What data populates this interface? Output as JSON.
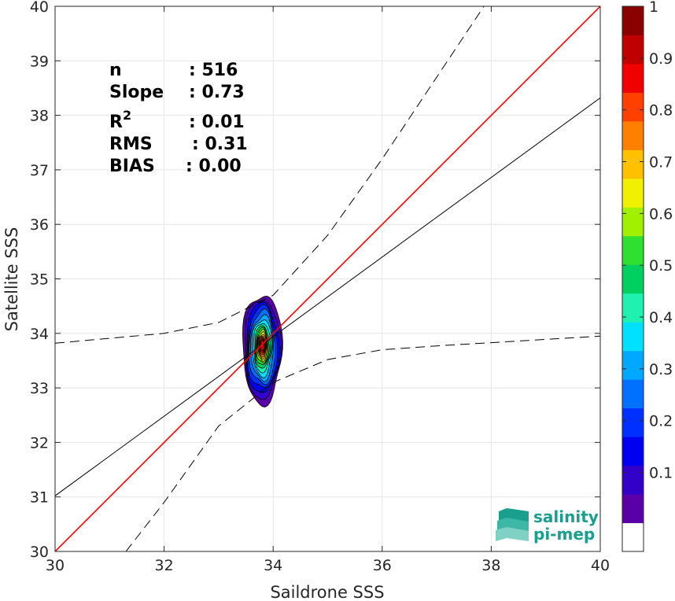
{
  "chart_data": {
    "type": "contour-scatter",
    "xlabel": "Saildrone SSS",
    "ylabel": "Satellite SSS",
    "xlim": [
      30,
      40
    ],
    "ylim": [
      30,
      40
    ],
    "xticks": [
      "30",
      "32",
      "34",
      "36",
      "38",
      "40"
    ],
    "yticks": [
      "30",
      "31",
      "32",
      "33",
      "34",
      "35",
      "36",
      "37",
      "38",
      "39",
      "40"
    ],
    "grid": true,
    "stats": [
      {
        "label": "n",
        "value": ": 516"
      },
      {
        "label": "Slope",
        "value": ": 0.73"
      },
      {
        "label": "R",
        "sup": "2",
        "value": ": 0.01"
      },
      {
        "label": "RMS",
        "value": ": 0.31"
      },
      {
        "label": "BIAS",
        "value": ": 0.00"
      }
    ],
    "identity_line": {
      "x": [
        30,
        40
      ],
      "y": [
        30,
        40
      ],
      "color": "#ff0000"
    },
    "fit_line": {
      "x": [
        30,
        40
      ],
      "y": [
        31.02,
        38.32
      ],
      "color": "#000000"
    },
    "upper_envelope": {
      "x": [
        30,
        32,
        33,
        34,
        35,
        36,
        37,
        38,
        40
      ],
      "y": [
        33.82,
        34.0,
        34.2,
        34.7,
        35.8,
        37.2,
        38.7,
        40.2,
        40.2
      ]
    },
    "lower_envelope": {
      "x": [
        31.3,
        32,
        33,
        34,
        35,
        36,
        37,
        38,
        40
      ],
      "y": [
        30.0,
        30.9,
        32.3,
        33.1,
        33.52,
        33.7,
        33.77,
        33.83,
        33.95
      ]
    },
    "density_contours": {
      "center": [
        33.8,
        33.78
      ],
      "levels": [
        {
          "level": 0.05,
          "rx": 0.36,
          "ry": 1.0,
          "color": "#5a00a8"
        },
        {
          "level": 0.1,
          "rx": 0.33,
          "ry": 0.91,
          "color": "#3200c8"
        },
        {
          "level": 0.15,
          "rx": 0.3,
          "ry": 0.83,
          "color": "#0000f0"
        },
        {
          "level": 0.2,
          "rx": 0.27,
          "ry": 0.75,
          "color": "#0030ff"
        },
        {
          "level": 0.25,
          "rx": 0.24,
          "ry": 0.67,
          "color": "#0070ff"
        },
        {
          "level": 0.3,
          "rx": 0.21,
          "ry": 0.59,
          "color": "#00a8ff"
        },
        {
          "level": 0.35,
          "rx": 0.185,
          "ry": 0.52,
          "color": "#00e0ff"
        },
        {
          "level": 0.4,
          "rx": 0.16,
          "ry": 0.45,
          "color": "#20f0b0"
        },
        {
          "level": 0.45,
          "rx": 0.14,
          "ry": 0.39,
          "color": "#00d060"
        },
        {
          "level": 0.5,
          "rx": 0.12,
          "ry": 0.34,
          "color": "#30e030"
        },
        {
          "level": 0.55,
          "rx": 0.105,
          "ry": 0.3,
          "color": "#a0f000"
        },
        {
          "level": 0.6,
          "rx": 0.09,
          "ry": 0.26,
          "color": "#f0f000"
        },
        {
          "level": 0.65,
          "rx": 0.078,
          "ry": 0.22,
          "color": "#ffc000"
        },
        {
          "level": 0.7,
          "rx": 0.066,
          "ry": 0.19,
          "color": "#ff8000"
        },
        {
          "level": 0.75,
          "rx": 0.055,
          "ry": 0.16,
          "color": "#ff4000"
        },
        {
          "level": 0.8,
          "rx": 0.045,
          "ry": 0.13,
          "color": "#f00000"
        },
        {
          "level": 0.85,
          "rx": 0.035,
          "ry": 0.1,
          "color": "#c00000"
        }
      ]
    },
    "colorbar": {
      "ticks": [
        "0.1",
        "0.2",
        "0.3",
        "0.4",
        "0.5",
        "0.6",
        "0.7",
        "0.8",
        "0.9",
        "1"
      ],
      "colors": [
        "#ffffff",
        "#5a00a8",
        "#3200c8",
        "#0000f0",
        "#0030ff",
        "#0070ff",
        "#00a8ff",
        "#00e0ff",
        "#20f0b0",
        "#00d060",
        "#30e030",
        "#a0f000",
        "#f0f000",
        "#ffc000",
        "#ff8000",
        "#ff4000",
        "#f00000",
        "#c00000",
        "#8b0000"
      ]
    }
  },
  "logo": {
    "line1": "salinity",
    "line2": "pi-mep",
    "color": "#1a9e8e"
  }
}
